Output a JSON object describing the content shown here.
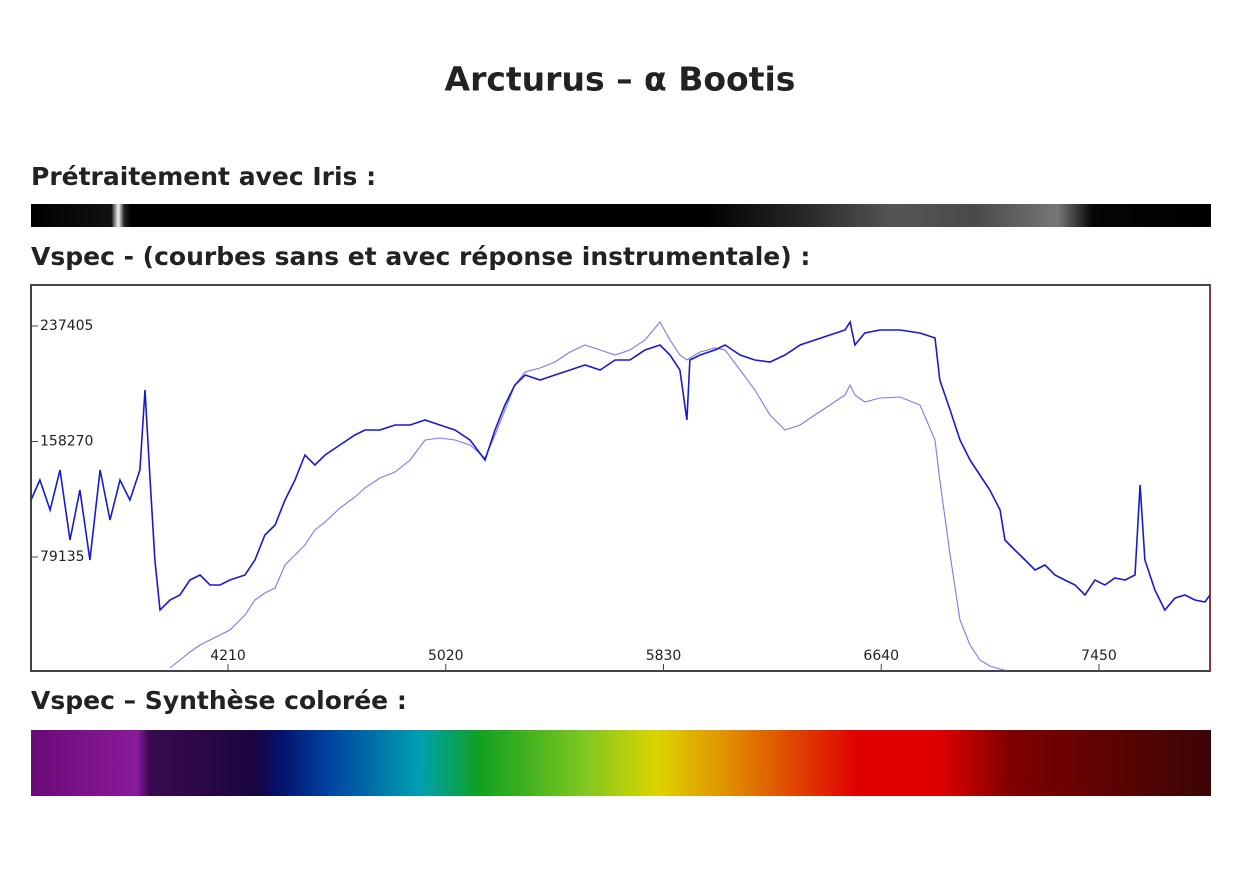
{
  "title": "Arcturus – α Bootis",
  "sections": [
    "Prétraitement avec Iris :",
    "Vspec - (courbes sans et avec réponse instrumentale) :",
    "Vspec – Synthèse colorée :"
  ],
  "chart_data": {
    "type": "line",
    "x": [
      3477,
      3510,
      3548,
      3585,
      3622,
      3659,
      3696,
      3734,
      3771,
      3808,
      3845,
      3882,
      3901,
      3920,
      3938,
      3957,
      3994,
      4031,
      4068,
      4106,
      4143,
      4180,
      4217,
      4273,
      4310,
      4347,
      4385,
      4422,
      4459,
      4496,
      4533,
      4571,
      4626,
      4682,
      4719,
      4775,
      4831,
      4887,
      4943,
      4998,
      5054,
      5110,
      5166,
      5203,
      5240,
      5277,
      5315,
      5371,
      5426,
      5482,
      5538,
      5594,
      5650,
      5705,
      5761,
      5817,
      5854,
      5891,
      5917,
      5928,
      5966,
      6021,
      6059,
      6115,
      6170,
      6226,
      6282,
      6338,
      6393,
      6449,
      6505,
      6524,
      6542,
      6579,
      6635,
      6710,
      6784,
      6840,
      6858,
      6896,
      6933,
      6970,
      7007,
      7044,
      7082,
      7100,
      7137,
      7175,
      7212,
      7249,
      7286,
      7323,
      7361,
      7398,
      7435,
      7472,
      7509,
      7547,
      7584,
      7603,
      7621,
      7658,
      7695,
      7733,
      7770,
      7807,
      7844,
      7863
    ],
    "series": [
      {
        "color": "#1a1acd",
        "values": [
          118180,
          131880,
          111330,
          138730,
          90780,
          125030,
          77080,
          138730,
          104480,
          131880,
          118180,
          138730,
          193530,
          131880,
          77080,
          42830,
          49680,
          53105,
          63380,
          66805,
          59955,
          59955,
          63380,
          66805,
          77080,
          94205,
          101055,
          118180,
          131880,
          149005,
          142155,
          149005,
          155855,
          162705,
          166130,
          166130,
          169555,
          169555,
          172980,
          169555,
          166130,
          159280,
          145580,
          166130,
          183255,
          196955,
          203805,
          200380,
          203805,
          207230,
          210655,
          207230,
          214080,
          214080,
          220930,
          224355,
          217505,
          207230,
          172980,
          214080,
          217505,
          220930,
          224355,
          217505,
          214080,
          212710,
          217505,
          224355,
          227780,
          231205,
          234630,
          240110,
          224355,
          232575,
          234630,
          234630,
          232575,
          229150,
          200380,
          179830,
          159280,
          145580,
          135305,
          125030,
          111330,
          90780,
          83930,
          77080,
          70230,
          73655,
          66805,
          63380,
          59955,
          53105,
          63380,
          59955,
          64750,
          63380,
          66805,
          128455,
          77080,
          56530,
          42830,
          51050,
          53105,
          49680,
          48310,
          53105
        ]
      },
      {
        "color": "#7b7bea",
        "values": [
          null,
          null,
          null,
          null,
          null,
          null,
          null,
          null,
          null,
          null,
          null,
          null,
          null,
          null,
          null,
          null,
          3100,
          8580,
          14060,
          18855,
          22280,
          25705,
          29130,
          39405,
          49680,
          54475,
          57900,
          73655,
          80505,
          87355,
          97630,
          103110,
          112700,
          120235,
          126400,
          133250,
          137360,
          145580,
          159280,
          160650,
          159280,
          155855,
          146950,
          162705,
          179830,
          196955,
          205860,
          208600,
          212710,
          219560,
          224355,
          220930,
          217505,
          220930,
          227780,
          240110,
          227780,
          217505,
          214080,
          215450,
          219560,
          222300,
          220930,
          207230,
          193530,
          176405,
          166130,
          169555,
          176405,
          183255,
          190105,
          196955,
          190105,
          185310,
          188050,
          188735,
          183255,
          159280,
          131880,
          80505,
          35980,
          18855,
          8580,
          4470,
          2415,
          1730,
          null,
          null,
          null,
          null,
          null,
          null,
          null,
          null,
          null,
          null,
          null,
          null,
          null,
          null,
          null,
          null,
          null,
          null,
          null,
          null,
          null,
          null
        ]
      }
    ],
    "xlim": [
      3477,
      7863
    ],
    "xticks": [
      4210,
      5020,
      5830,
      6640,
      7450
    ],
    "ylim": [
      1045,
      265490
    ],
    "yticks": [
      79135,
      158270,
      237405
    ]
  }
}
